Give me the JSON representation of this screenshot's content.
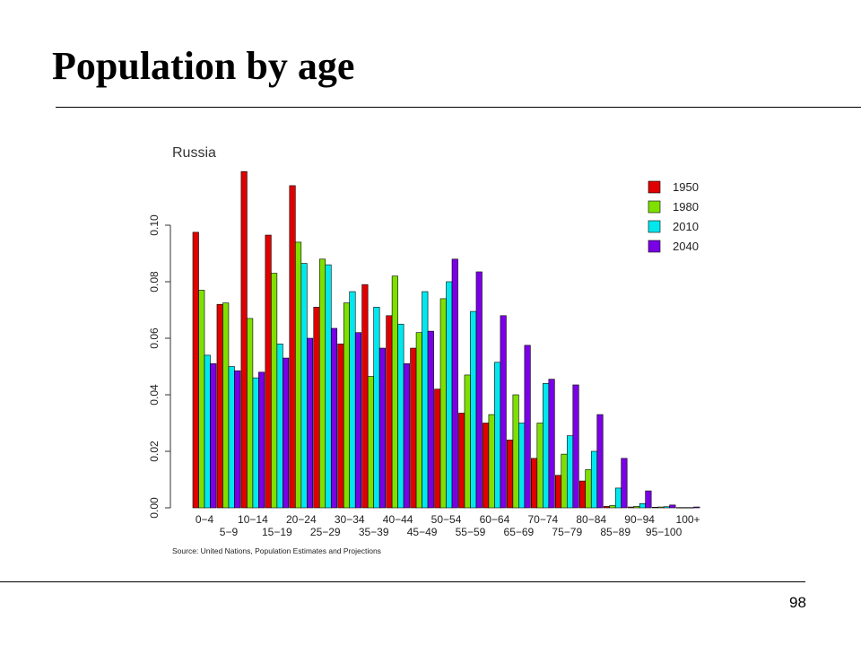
{
  "slide": {
    "title": "Population by age",
    "page_number": "98"
  },
  "chart_data": {
    "type": "bar",
    "title": "Russia",
    "xlabel": "",
    "ylabel": "",
    "ylim": [
      0,
      0.12
    ],
    "yticks": [
      "0.00",
      "0.02",
      "0.04",
      "0.06",
      "0.08",
      "0.10"
    ],
    "ytick_values": [
      0,
      0.02,
      0.04,
      0.06,
      0.08,
      0.1
    ],
    "categories": [
      "0-4",
      "5-9",
      "10-14",
      "15-19",
      "20-24",
      "25-29",
      "30-34",
      "35-39",
      "40-44",
      "45-49",
      "50-54",
      "55-59",
      "60-64",
      "65-69",
      "70-74",
      "75-79",
      "80-84",
      "85-89",
      "90-94",
      "95-100",
      "100+"
    ],
    "x_tick_labels_row1": [
      "0-4",
      "10-14",
      "20-24",
      "30-34",
      "40-44",
      "50-54",
      "60-64",
      "70-74",
      "80-84",
      "90-94",
      "100+"
    ],
    "x_tick_labels_row2": [
      "5-9",
      "15-19",
      "25-29",
      "35-39",
      "45-49",
      "55-59",
      "65-69",
      "75-79",
      "85-89",
      "95-100"
    ],
    "series": [
      {
        "name": "1950",
        "color": "#e00000",
        "values": [
          0.0975,
          0.072,
          0.119,
          0.0965,
          0.114,
          0.071,
          0.058,
          0.079,
          0.068,
          0.0565,
          0.042,
          0.0335,
          0.03,
          0.024,
          0.0175,
          0.0115,
          0.0095,
          0.0005,
          0.0003,
          0.0002,
          0.0001
        ]
      },
      {
        "name": "1980",
        "color": "#7fe000",
        "values": [
          0.077,
          0.0725,
          0.067,
          0.083,
          0.094,
          0.088,
          0.0725,
          0.0465,
          0.082,
          0.062,
          0.074,
          0.047,
          0.033,
          0.04,
          0.03,
          0.019,
          0.0135,
          0.0008,
          0.0005,
          0.0003,
          0.0001
        ]
      },
      {
        "name": "2010",
        "color": "#00e8ee",
        "values": [
          0.054,
          0.05,
          0.046,
          0.058,
          0.0865,
          0.086,
          0.0765,
          0.071,
          0.065,
          0.0765,
          0.08,
          0.0695,
          0.0515,
          0.03,
          0.044,
          0.0255,
          0.02,
          0.007,
          0.0015,
          0.0004,
          0.0001
        ]
      },
      {
        "name": "2040",
        "color": "#7a00e6",
        "values": [
          0.051,
          0.0485,
          0.048,
          0.053,
          0.06,
          0.0635,
          0.062,
          0.0565,
          0.051,
          0.0625,
          0.088,
          0.0835,
          0.068,
          0.0575,
          0.0455,
          0.0435,
          0.033,
          0.0175,
          0.006,
          0.001,
          0.0003
        ]
      }
    ],
    "legend_position": "top-right",
    "grid": false,
    "source": "Source:  United Nations, Population Estimates and Projections"
  }
}
